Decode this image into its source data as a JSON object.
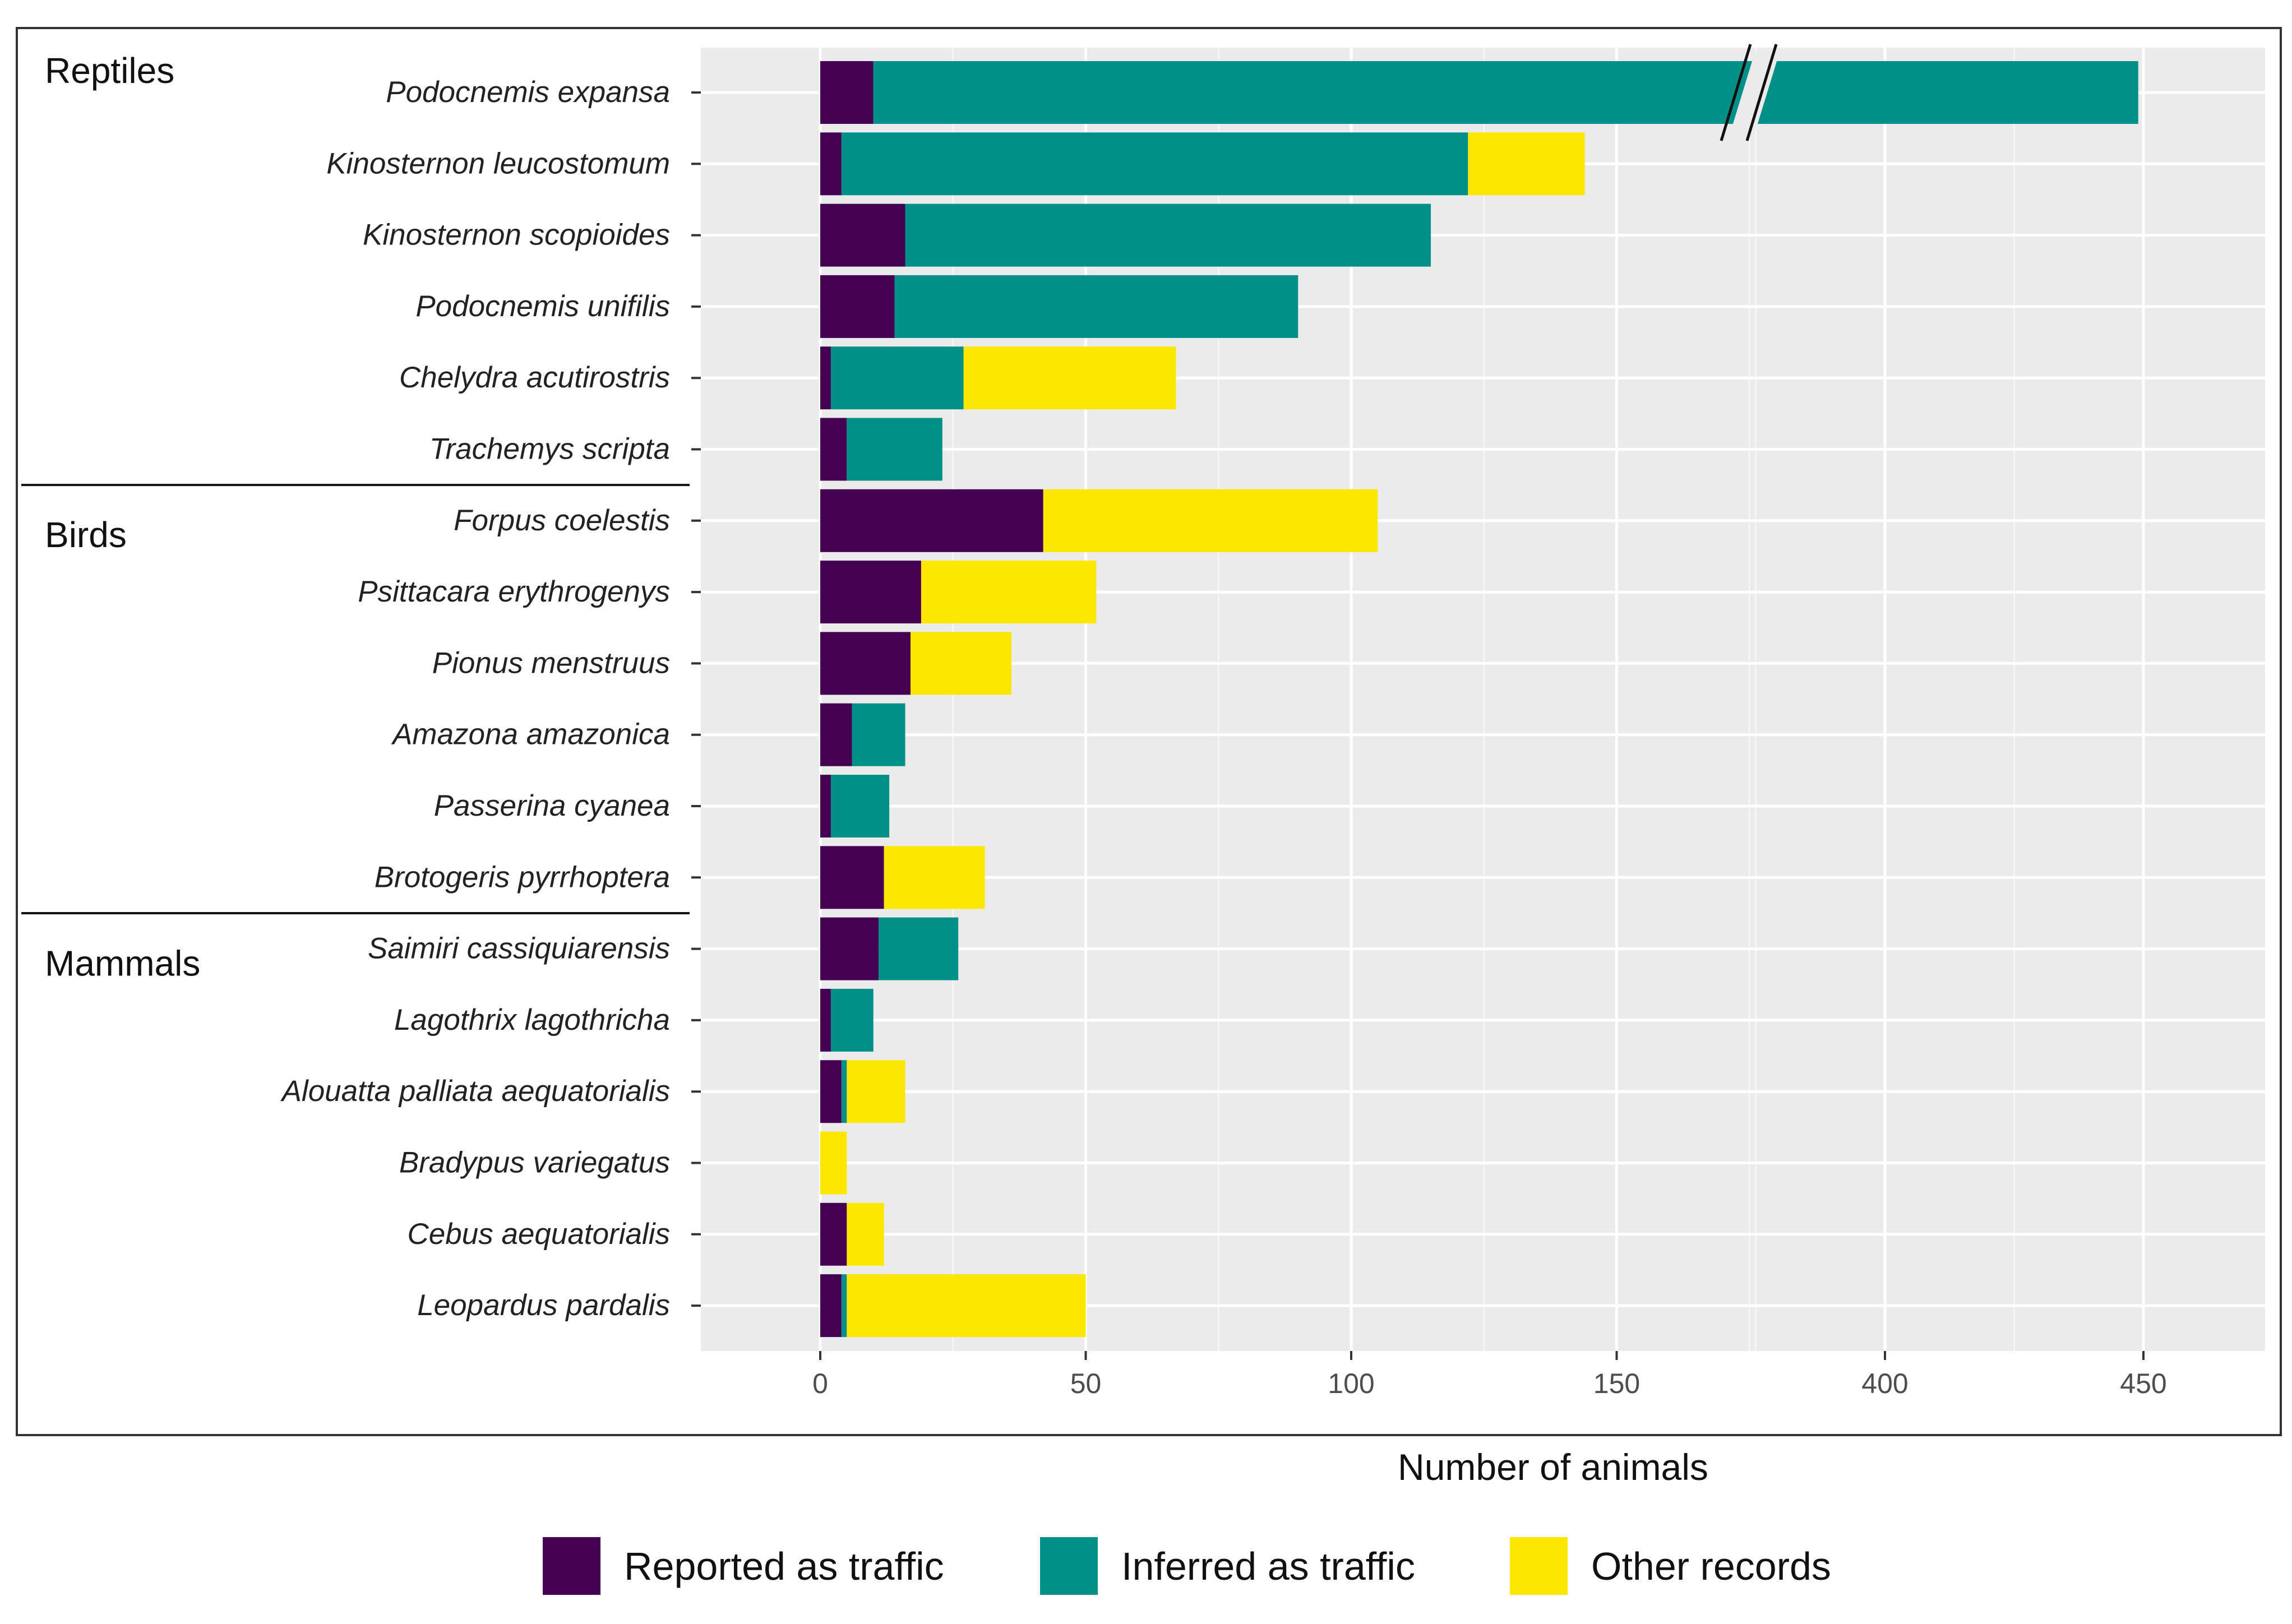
{
  "chart_data": {
    "type": "bar",
    "orientation": "horizontal",
    "stacked": true,
    "xlabel": "Number of animals",
    "axis_break": "between 150 and 400",
    "ticks": [
      {
        "value": 0,
        "label": "0"
      },
      {
        "value": 50,
        "label": "50"
      },
      {
        "value": 100,
        "label": "100"
      },
      {
        "value": 150,
        "label": "150"
      },
      {
        "value": 400,
        "label": "400"
      },
      {
        "value": 450,
        "label": "450"
      }
    ],
    "series": [
      {
        "key": "reported",
        "name": "Reported as traffic",
        "color": "#440154"
      },
      {
        "key": "inferred",
        "name": "Inferred as traffic",
        "color": "#009088"
      },
      {
        "key": "other",
        "name": "Other records",
        "color": "#FDE700"
      }
    ],
    "groups": [
      {
        "label": "Reptiles",
        "rows": [
          0,
          5
        ]
      },
      {
        "label": "Birds",
        "rows": [
          6,
          11
        ]
      },
      {
        "label": "Mammals",
        "rows": [
          12,
          17
        ]
      }
    ],
    "categories": [
      {
        "name": "Podocnemis expansa",
        "reported": 10,
        "inferred": 439,
        "other": 0
      },
      {
        "name": "Kinosternon leucostomum",
        "reported": 4,
        "inferred": 118,
        "other": 22
      },
      {
        "name": "Kinosternon scopioides",
        "reported": 16,
        "inferred": 99,
        "other": 0
      },
      {
        "name": "Podocnemis unifilis",
        "reported": 14,
        "inferred": 76,
        "other": 0
      },
      {
        "name": "Chelydra acutirostris",
        "reported": 2,
        "inferred": 25,
        "other": 40
      },
      {
        "name": "Trachemys scripta",
        "reported": 5,
        "inferred": 18,
        "other": 0
      },
      {
        "name": "Forpus coelestis",
        "reported": 42,
        "inferred": 0,
        "other": 63
      },
      {
        "name": "Psittacara erythrogenys",
        "reported": 19,
        "inferred": 0,
        "other": 33
      },
      {
        "name": "Pionus menstruus",
        "reported": 17,
        "inferred": 0,
        "other": 19
      },
      {
        "name": "Amazona amazonica",
        "reported": 6,
        "inferred": 10,
        "other": 0
      },
      {
        "name": "Passerina cyanea",
        "reported": 2,
        "inferred": 11,
        "other": 0
      },
      {
        "name": "Brotogeris pyrrhoptera",
        "reported": 12,
        "inferred": 0,
        "other": 19
      },
      {
        "name": "Saimiri cassiquiarensis",
        "reported": 11,
        "inferred": 15,
        "other": 0
      },
      {
        "name": "Lagothrix lagothricha",
        "reported": 2,
        "inferred": 8,
        "other": 0
      },
      {
        "name": "Alouatta palliata aequatorialis",
        "reported": 4,
        "inferred": 1,
        "other": 11
      },
      {
        "name": "Bradypus variegatus",
        "reported": 0,
        "inferred": 0,
        "other": 5
      },
      {
        "name": "Cebus aequatorialis",
        "reported": 5,
        "inferred": 0,
        "other": 7
      },
      {
        "name": "Leopardus pardalis",
        "reported": 4,
        "inferred": 1,
        "other": 45
      }
    ]
  }
}
